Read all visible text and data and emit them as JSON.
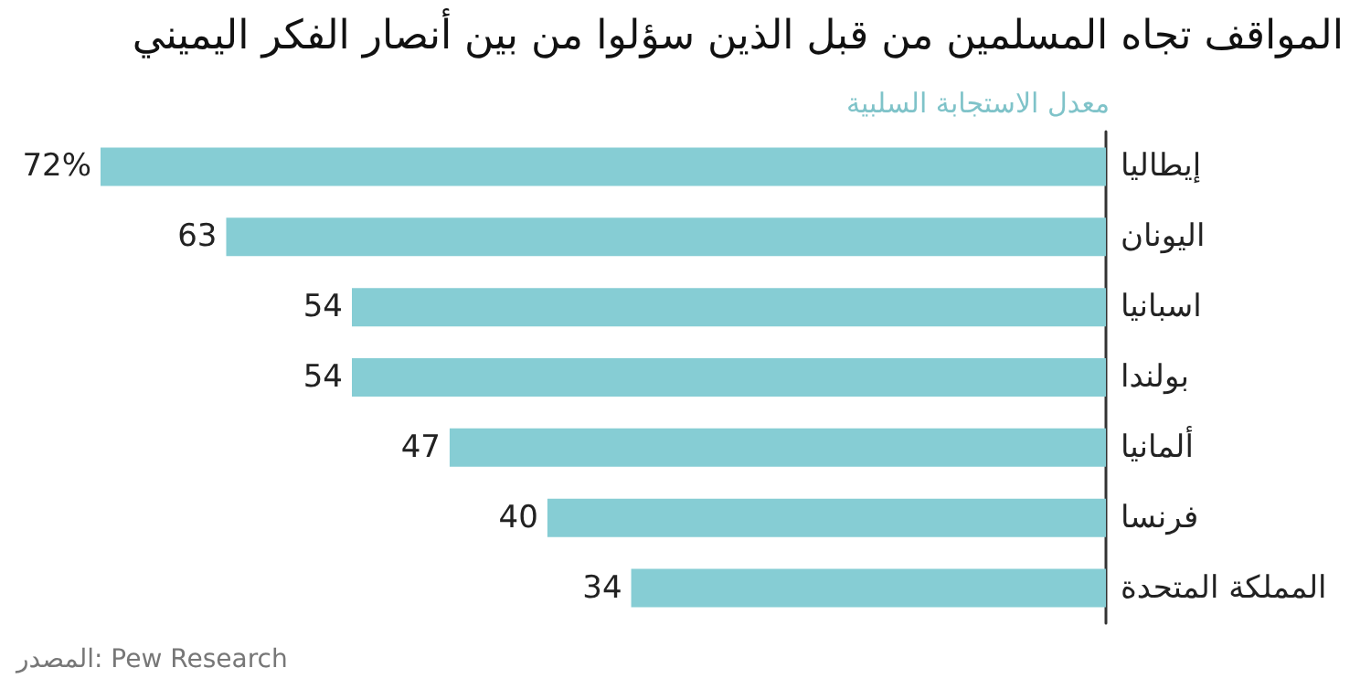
{
  "chart_data": {
    "type": "bar",
    "orientation": "horizontal",
    "title": "المواقف تجاه المسلمين من قبل الذين سؤلوا من بين أنصار الفكر اليميني",
    "subtitle": "معدل الاستجابة السلبية",
    "categories": [
      "إيطاليا",
      "اليونان",
      "اسبانيا",
      "بولندا",
      "ألمانيا",
      "فرنسا",
      "المملكة المتحدة"
    ],
    "values": [
      72,
      63,
      54,
      54,
      47,
      40,
      34
    ],
    "value_labels": [
      "72%",
      "63",
      "54",
      "54",
      "47",
      "40",
      "34"
    ],
    "color": "#86cdd4",
    "grid": false,
    "annotations": [
      "المصدر: Pew Research"
    ]
  }
}
